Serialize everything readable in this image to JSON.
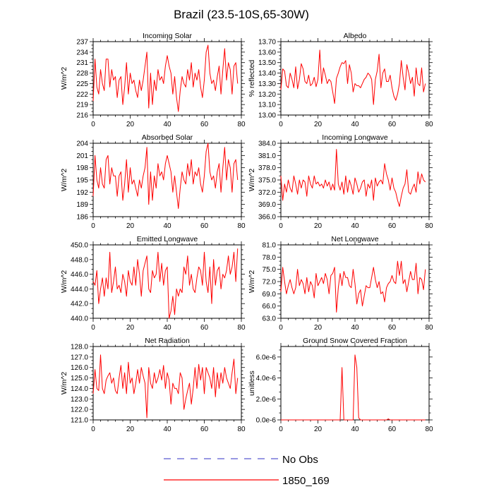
{
  "figure_title": "Brazil (23.5-10S,65-30W)",
  "colors": {
    "series": "#ff0000",
    "no_obs": "#5a5ad0",
    "axis": "#000000"
  },
  "legend": [
    {
      "label": "No Obs",
      "style": "dashed",
      "color": "#5a5ad0"
    },
    {
      "label": "1850_169",
      "style": "solid",
      "color": "#ff0000"
    }
  ],
  "chart_data": [
    {
      "type": "line",
      "title": "Incoming Solar",
      "ylabel": "W/m^2",
      "xlabel": "",
      "xlim": [
        0,
        80
      ],
      "ylim": [
        216,
        237
      ],
      "xticks": [
        0,
        20,
        40,
        60,
        80
      ],
      "yticks": [
        "216",
        "219",
        "222",
        "225",
        "228",
        "231",
        "234",
        "237"
      ],
      "series": [
        {
          "name": "1850_169",
          "values": [
            220,
            232,
            224,
            222,
            229,
            225,
            223,
            232,
            232,
            224,
            229,
            226,
            227,
            221,
            226,
            227,
            219,
            224,
            231,
            222,
            228,
            225,
            226,
            223,
            221,
            226,
            223,
            226,
            230,
            234,
            218,
            228,
            219,
            226,
            223,
            229,
            226,
            227,
            225,
            230,
            233,
            230,
            228,
            222,
            227,
            221,
            217,
            223,
            227,
            225,
            224,
            229,
            226,
            231,
            224,
            228,
            226,
            229,
            224,
            221,
            226,
            234,
            236,
            228,
            225,
            226,
            223,
            227,
            230,
            222,
            229,
            235,
            226,
            231,
            229,
            222,
            230,
            231,
            225
          ]
        }
      ]
    },
    {
      "type": "line",
      "title": "Albedo",
      "ylabel": "% reflected",
      "xlabel": "",
      "xlim": [
        0,
        80
      ],
      "ylim": [
        13.0,
        13.7
      ],
      "xticks": [
        0,
        20,
        40,
        60,
        80
      ],
      "yticks": [
        "13.00",
        "13.10",
        "13.20",
        "13.30",
        "13.40",
        "13.50",
        "13.60",
        "13.70"
      ],
      "series": [
        {
          "name": "1850_169",
          "values": [
            13.24,
            13.44,
            13.42,
            13.28,
            13.26,
            13.4,
            13.34,
            13.26,
            13.46,
            13.25,
            13.34,
            13.49,
            13.44,
            13.32,
            13.3,
            13.38,
            13.28,
            13.3,
            13.36,
            13.27,
            13.34,
            13.62,
            13.3,
            13.45,
            13.38,
            13.3,
            13.34,
            13.32,
            13.22,
            13.11,
            13.35,
            13.4,
            13.46,
            13.5,
            13.49,
            13.52,
            13.3,
            13.48,
            13.4,
            13.22,
            13.3,
            13.28,
            13.28,
            13.26,
            13.3,
            13.34,
            13.36,
            13.4,
            13.38,
            13.34,
            13.1,
            13.34,
            13.42,
            13.58,
            13.26,
            13.4,
            13.44,
            13.32,
            13.32,
            13.38,
            13.26,
            13.18,
            13.14,
            13.2,
            13.3,
            13.52,
            13.36,
            13.24,
            13.48,
            13.4,
            13.3,
            13.36,
            13.18,
            13.45,
            13.3,
            13.28,
            13.45,
            13.22,
            13.3
          ]
        }
      ]
    },
    {
      "type": "line",
      "title": "Absorbed Solar",
      "ylabel": "W/m^2",
      "xlabel": "",
      "xlim": [
        0,
        80
      ],
      "ylim": [
        186,
        204
      ],
      "xticks": [
        0,
        20,
        40,
        60,
        80
      ],
      "yticks": [
        "186",
        "189",
        "192",
        "195",
        "198",
        "201",
        "204"
      ],
      "series": [
        {
          "name": "1850_169",
          "values": [
            191,
            201,
            195,
            193,
            198,
            194,
            193,
            200,
            201,
            194,
            198,
            196,
            196,
            191,
            196,
            197,
            190,
            194,
            200,
            192,
            198,
            194,
            195,
            193,
            191,
            195,
            193,
            196,
            198,
            203,
            189,
            197,
            190,
            196,
            193,
            199,
            196,
            197,
            195,
            199,
            201,
            199,
            197,
            192,
            196,
            192,
            188,
            193,
            197,
            195,
            194,
            199,
            196,
            200,
            194,
            197,
            196,
            198,
            194,
            192,
            196,
            202,
            204,
            197,
            195,
            196,
            193,
            197,
            199,
            192,
            198,
            203,
            195,
            200,
            198,
            192,
            199,
            200,
            195
          ]
        }
      ]
    },
    {
      "type": "line",
      "title": "Incoming Longwave",
      "ylabel": "W/m^2",
      "xlabel": "",
      "xlim": [
        0,
        80
      ],
      "ylim": [
        366,
        384
      ],
      "xticks": [
        0,
        20,
        40,
        60,
        80
      ],
      "yticks": [
        "366.0",
        "369.0",
        "372.0",
        "375.0",
        "378.0",
        "381.0",
        "384.0"
      ],
      "series": [
        {
          "name": "1850_169",
          "values": [
            376.0,
            370.0,
            374.0,
            372.0,
            375.0,
            373.0,
            372.0,
            376.0,
            374.0,
            371.5,
            375.0,
            373.0,
            375.0,
            374.5,
            371.0,
            376.0,
            374.0,
            373.0,
            376.0,
            374.0,
            374.5,
            373.5,
            374.0,
            373.0,
            375.0,
            373.5,
            374.5,
            372.5,
            374.0,
            372.5,
            382.5,
            374.0,
            372.5,
            374.5,
            371.5,
            376.0,
            372.0,
            375.0,
            373.5,
            371.5,
            375.5,
            374.0,
            372.0,
            373.0,
            374.5,
            375.0,
            371.0,
            374.0,
            373.0,
            375.0,
            370.0,
            375.5,
            373.5,
            374.5,
            375.0,
            374.0,
            379.0,
            376.5,
            375.0,
            372.5,
            375.5,
            373.0,
            372.0,
            370.0,
            368.5,
            371.0,
            373.0,
            374.0,
            377.5,
            372.0,
            371.5,
            373.0,
            374.0,
            372.0,
            377.0,
            374.0,
            376.5,
            375.0,
            374.5
          ]
        }
      ]
    },
    {
      "type": "line",
      "title": "Emitted Longwave",
      "ylabel": "W/m^2",
      "xlabel": "",
      "xlim": [
        0,
        80
      ],
      "ylim": [
        440,
        450
      ],
      "xticks": [
        0,
        20,
        40,
        60,
        80
      ],
      "yticks": [
        "440.0",
        "442.0",
        "444.0",
        "446.0",
        "448.0",
        "450.0"
      ],
      "series": [
        {
          "name": "1850_169",
          "values": [
            445.0,
            444.5,
            446.5,
            442.0,
            444.0,
            445.5,
            443.0,
            445.5,
            444.0,
            449.0,
            443.5,
            445.0,
            447.0,
            444.0,
            444.5,
            443.5,
            446.0,
            445.0,
            443.0,
            446.5,
            445.0,
            444.5,
            447.0,
            444.5,
            448.0,
            446.0,
            443.0,
            446.5,
            447.5,
            448.5,
            444.0,
            443.5,
            446.5,
            445.5,
            446.0,
            449.0,
            445.0,
            447.5,
            444.5,
            446.5,
            447.0,
            440.0,
            441.0,
            443.0,
            440.5,
            444.0,
            443.0,
            444.0,
            443.5,
            447.0,
            446.0,
            448.5,
            444.5,
            446.0,
            444.0,
            443.5,
            445.5,
            447.0,
            446.5,
            444.5,
            449.0,
            445.0,
            443.5,
            447.0,
            442.0,
            448.0,
            444.5,
            446.5,
            447.0,
            444.0,
            446.0,
            445.5,
            446.5,
            448.5,
            446.0,
            447.0,
            449.0,
            445.0,
            449.5
          ]
        }
      ]
    },
    {
      "type": "line",
      "title": "Net Longwave",
      "ylabel": "W/m^2",
      "xlabel": "",
      "xlim": [
        0,
        80
      ],
      "ylim": [
        63,
        81
      ],
      "xticks": [
        0,
        20,
        40,
        60,
        80
      ],
      "yticks": [
        "63.0",
        "66.0",
        "69.0",
        "72.0",
        "75.0",
        "78.0",
        "81.0"
      ],
      "series": [
        {
          "name": "1850_169",
          "values": [
            69.5,
            75.5,
            72.0,
            69.0,
            71.0,
            72.5,
            70.5,
            69.0,
            70.5,
            75.0,
            71.0,
            72.5,
            71.5,
            69.0,
            73.0,
            69.5,
            72.0,
            71.0,
            68.0,
            74.0,
            71.0,
            72.0,
            73.0,
            71.5,
            74.0,
            72.5,
            69.0,
            73.5,
            74.0,
            75.5,
            64.5,
            70.5,
            74.0,
            71.0,
            74.5,
            73.0,
            73.0,
            71.0,
            70.5,
            75.0,
            71.5,
            66.5,
            69.0,
            70.0,
            66.0,
            68.5,
            71.0,
            70.5,
            70.5,
            73.0,
            75.5,
            72.5,
            70.5,
            72.0,
            69.0,
            69.5,
            67.0,
            70.5,
            71.5,
            72.0,
            73.5,
            72.0,
            71.5,
            77.0,
            73.5,
            77.0,
            71.5,
            72.5,
            69.5,
            72.0,
            74.5,
            72.5,
            72.5,
            76.5,
            69.0,
            73.0,
            72.5,
            70.0,
            75.0
          ]
        }
      ]
    },
    {
      "type": "line",
      "title": "Net Radiation",
      "ylabel": "W/m^2",
      "xlabel": "",
      "xlim": [
        0,
        80
      ],
      "ylim": [
        121,
        128
      ],
      "xticks": [
        0,
        20,
        40,
        60,
        80
      ],
      "yticks": [
        "121.0",
        "122.0",
        "123.0",
        "124.0",
        "125.0",
        "126.0",
        "127.0",
        "128.0"
      ],
      "series": [
        {
          "name": "1850_169",
          "values": [
            123.5,
            125.8,
            124.0,
            123.8,
            127.2,
            124.0,
            123.5,
            124.8,
            125.2,
            125.5,
            124.5,
            125.0,
            123.8,
            123.5,
            125.0,
            126.2,
            124.0,
            125.5,
            123.5,
            126.5,
            124.5,
            125.0,
            123.5,
            124.5,
            125.8,
            124.5,
            126.0,
            125.2,
            124.5,
            121.2,
            126.0,
            124.5,
            124.0,
            125.5,
            124.5,
            125.0,
            125.8,
            124.8,
            126.2,
            124.0,
            125.5,
            124.8,
            122.5,
            124.5,
            124.0,
            124.0,
            123.5,
            125.5,
            125.0,
            122.0,
            123.0,
            123.8,
            124.5,
            122.5,
            124.0,
            126.0,
            124.0,
            126.3,
            124.8,
            126.0,
            123.5,
            126.0,
            125.5,
            125.0,
            124.0,
            126.0,
            123.2,
            125.5,
            124.0,
            125.5,
            124.5,
            126.0,
            125.0,
            124.5,
            124.0,
            125.5,
            126.8,
            123.5,
            125.0
          ]
        }
      ]
    },
    {
      "type": "line",
      "title": "Ground Snow Covered Fraction",
      "ylabel": "unitless",
      "xlabel": "",
      "xlim": [
        0,
        80
      ],
      "ylim": [
        0,
        7e-06
      ],
      "xticks": [
        0,
        20,
        40,
        60,
        80
      ],
      "yticks": [
        "0.0e-6",
        "2.0e-6",
        "4.0e-6",
        "6.0e-6"
      ],
      "series": [
        {
          "name": "1850_169",
          "values": [
            0,
            0,
            0,
            0,
            0,
            0,
            0,
            0,
            0,
            0,
            0,
            0,
            0,
            0,
            0,
            0,
            0,
            0,
            0,
            0,
            0,
            0,
            0,
            0,
            0,
            0,
            0,
            0,
            0,
            0,
            0,
            0,
            0,
            5e-06,
            0,
            0,
            0,
            0,
            0,
            0,
            6.2e-06,
            5e-06,
            2e-07,
            0,
            0,
            0,
            0,
            0,
            0,
            0,
            0,
            0,
            0,
            0,
            0,
            0,
            0,
            0,
            1e-07,
            0,
            0,
            0,
            0,
            0,
            0,
            0,
            0,
            0,
            0,
            0,
            0,
            0,
            0,
            0,
            0,
            0,
            0,
            0,
            0
          ]
        }
      ]
    }
  ]
}
